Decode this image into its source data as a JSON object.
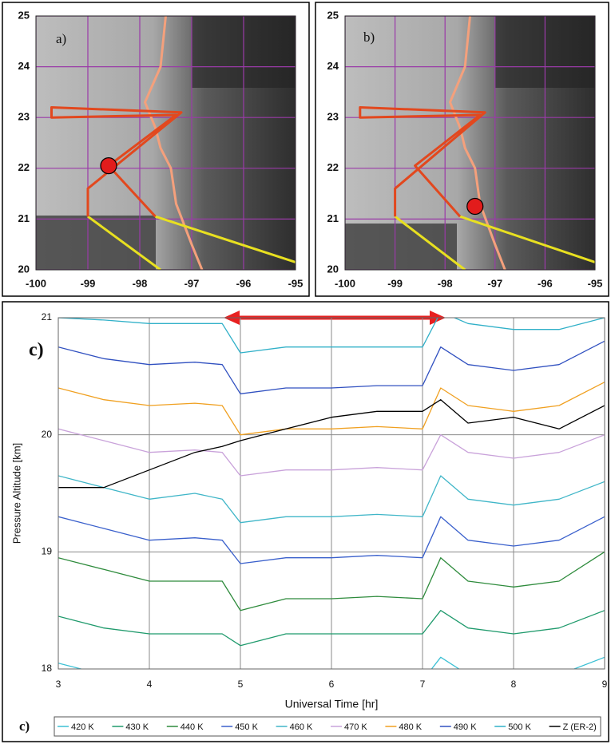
{
  "chart_data": [
    {
      "type": "map",
      "label": "a)",
      "xlim": [
        -100,
        -95
      ],
      "ylim": [
        20,
        25
      ],
      "xticks": [
        -100,
        -99,
        -98,
        -97,
        -96,
        -95
      ],
      "yticks": [
        20,
        21,
        22,
        23,
        24,
        25
      ],
      "grid": true,
      "grid_color": "#9a3aa8",
      "series": [
        {
          "color": "#f4a07c",
          "x": [
            -97.5,
            -97.6,
            -97.9,
            -97.7,
            -97.6,
            -97.4,
            -97.3,
            -97.0,
            -96.8
          ],
          "values": [
            25,
            24,
            23.3,
            22.8,
            22.4,
            22.0,
            21.3,
            20.5,
            20.0
          ]
        },
        {
          "color": "#e8e020",
          "x": [
            -99.0,
            -97.6
          ],
          "values": [
            21.05,
            20.0
          ]
        },
        {
          "color": "#e8e020",
          "x": [
            -97.7,
            -95.0
          ],
          "values": [
            21.05,
            20.15
          ]
        },
        {
          "color": "#e2481e",
          "x": [
            -99.0,
            -99.0,
            -97.2,
            -99.7,
            -99.7,
            -97.3,
            -98.6,
            -97.7
          ],
          "values": [
            21.05,
            21.6,
            23.1,
            23.2,
            23.0,
            23.05,
            22.05,
            21.05
          ]
        },
        {
          "color": "#e21c1c",
          "marker": true,
          "x": [
            -98.6
          ],
          "values": [
            22.05
          ]
        }
      ]
    },
    {
      "type": "map",
      "label": "b)",
      "xlim": [
        -100,
        -95
      ],
      "ylim": [
        20,
        25
      ],
      "xticks": [
        -100,
        -99,
        -98,
        -97,
        -96,
        -95
      ],
      "yticks": [
        20,
        21,
        22,
        23,
        24,
        25
      ],
      "grid": true,
      "grid_color": "#9a3aa8",
      "series": [
        {
          "color": "#f4a07c",
          "x": [
            -97.5,
            -97.6,
            -97.9,
            -97.7,
            -97.6,
            -97.4,
            -97.3,
            -97.0,
            -96.8
          ],
          "values": [
            25,
            24,
            23.3,
            22.8,
            22.4,
            22.0,
            21.3,
            20.5,
            20.0
          ]
        },
        {
          "color": "#e8e020",
          "x": [
            -99.0,
            -97.6
          ],
          "values": [
            21.05,
            20.0
          ]
        },
        {
          "color": "#e8e020",
          "x": [
            -97.7,
            -95.0
          ],
          "values": [
            21.05,
            20.15
          ]
        },
        {
          "color": "#e2481e",
          "x": [
            -99.0,
            -99.0,
            -97.2,
            -99.7,
            -99.7,
            -97.3,
            -98.6,
            -97.7
          ],
          "values": [
            21.05,
            21.6,
            23.1,
            23.2,
            23.0,
            23.05,
            22.05,
            21.05
          ]
        },
        {
          "color": "#e21c1c",
          "marker": true,
          "x": [
            -97.4
          ],
          "values": [
            21.25
          ]
        }
      ]
    },
    {
      "type": "line",
      "annotations": [
        "c)",
        "c)"
      ],
      "xlabel": "Universal Time [hr]",
      "ylabel": "Pressure Altitude [km]",
      "xlim": [
        3,
        9
      ],
      "ylim": [
        18,
        21
      ],
      "xticks": [
        3,
        4,
        5,
        6,
        7,
        8,
        9
      ],
      "yticks": [
        18,
        19,
        20,
        21
      ],
      "grid": true,
      "grid_color": "#8a8a8a",
      "legend": "bottom",
      "x": [
        3,
        3.5,
        4,
        4.5,
        4.8,
        5,
        5.5,
        6,
        6.5,
        7,
        7.2,
        7.5,
        8,
        8.5,
        9
      ],
      "series": [
        {
          "name": "420 K",
          "color": "#3cc0d4",
          "values": [
            18.05,
            17.95,
            17.9,
            17.9,
            17.9,
            17.8,
            17.85,
            17.85,
            17.85,
            17.9,
            18.1,
            17.95,
            17.9,
            17.95,
            18.1
          ]
        },
        {
          "name": "430 K",
          "color": "#1f9a6c",
          "values": [
            18.45,
            18.35,
            18.3,
            18.3,
            18.3,
            18.2,
            18.3,
            18.3,
            18.3,
            18.3,
            18.5,
            18.35,
            18.3,
            18.35,
            18.5
          ]
        },
        {
          "name": "440 K",
          "color": "#2e8b3c",
          "values": [
            18.95,
            18.85,
            18.75,
            18.75,
            18.75,
            18.5,
            18.6,
            18.6,
            18.62,
            18.6,
            18.95,
            18.75,
            18.7,
            18.75,
            19.0
          ]
        },
        {
          "name": "450 K",
          "color": "#3a60cc",
          "values": [
            19.3,
            19.2,
            19.1,
            19.12,
            19.1,
            18.9,
            18.95,
            18.95,
            18.97,
            18.95,
            19.3,
            19.1,
            19.05,
            19.1,
            19.3
          ]
        },
        {
          "name": "460 K",
          "color": "#40b6c8",
          "values": [
            19.65,
            19.55,
            19.45,
            19.5,
            19.45,
            19.25,
            19.3,
            19.3,
            19.32,
            19.3,
            19.65,
            19.45,
            19.4,
            19.45,
            19.6
          ]
        },
        {
          "name": "470 K",
          "color": "#c9a2da",
          "values": [
            20.05,
            19.95,
            19.85,
            19.87,
            19.85,
            19.65,
            19.7,
            19.7,
            19.72,
            19.7,
            20.0,
            19.85,
            19.8,
            19.85,
            20.0
          ]
        },
        {
          "name": "480 K",
          "color": "#f0a020",
          "values": [
            20.4,
            20.3,
            20.25,
            20.27,
            20.25,
            20.0,
            20.05,
            20.05,
            20.07,
            20.05,
            20.4,
            20.25,
            20.2,
            20.25,
            20.45
          ]
        },
        {
          "name": "490 K",
          "color": "#3050c0",
          "values": [
            20.75,
            20.65,
            20.6,
            20.62,
            20.6,
            20.35,
            20.4,
            20.4,
            20.42,
            20.42,
            20.75,
            20.6,
            20.55,
            20.6,
            20.8
          ]
        },
        {
          "name": "500 K",
          "color": "#30b0c8",
          "values": [
            21.0,
            20.98,
            20.95,
            20.95,
            20.95,
            20.7,
            20.75,
            20.75,
            20.75,
            20.75,
            21.05,
            20.95,
            20.9,
            20.9,
            21.0
          ]
        },
        {
          "name": "Z (ER-2)",
          "color": "#000000",
          "values": [
            19.55,
            19.55,
            19.7,
            19.85,
            19.9,
            19.95,
            20.05,
            20.15,
            20.2,
            20.2,
            20.3,
            20.1,
            20.15,
            20.05,
            20.25
          ]
        }
      ]
    }
  ]
}
